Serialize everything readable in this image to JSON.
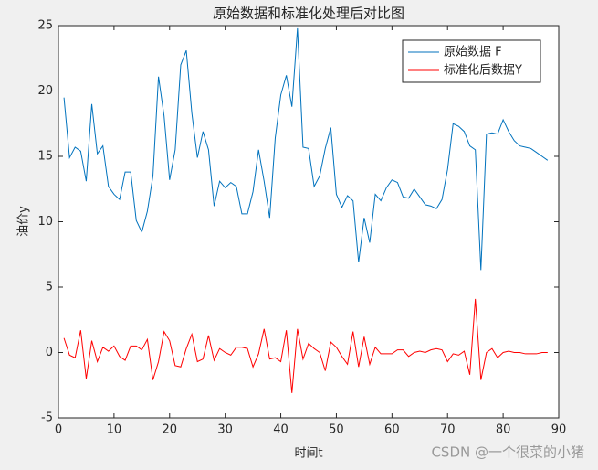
{
  "chart_data": {
    "type": "line",
    "title": "原始数据和标准化处理后对比图",
    "xlabel": "时间t",
    "ylabel": "油价y",
    "watermark": "CSDN @一个很菜的小猪",
    "x": [
      1,
      2,
      3,
      4,
      5,
      6,
      7,
      8,
      9,
      10,
      11,
      12,
      13,
      14,
      15,
      16,
      17,
      18,
      19,
      20,
      21,
      22,
      23,
      24,
      25,
      26,
      27,
      28,
      29,
      30,
      31,
      32,
      33,
      34,
      35,
      36,
      37,
      38,
      39,
      40,
      41,
      42,
      43,
      44,
      45,
      46,
      47,
      48,
      49,
      50,
      51,
      52,
      53,
      54,
      55,
      56,
      57,
      58,
      59,
      60,
      61,
      62,
      63,
      64,
      65,
      66,
      67,
      68,
      69,
      70,
      71,
      72,
      73,
      74,
      75,
      76,
      77,
      78,
      79,
      80,
      81,
      82,
      83,
      84,
      85,
      86,
      87,
      88
    ],
    "series": [
      {
        "name": "原始数据 F",
        "color": "#0072bd",
        "values": [
          19.5,
          14.9,
          15.7,
          15.4,
          13.1,
          19.0,
          15.2,
          15.8,
          12.7,
          12.1,
          11.7,
          13.8,
          13.8,
          10.1,
          9.2,
          10.8,
          13.5,
          21.1,
          18.1,
          13.2,
          15.5,
          22.0,
          23.1,
          18.3,
          14.9,
          16.9,
          15.5,
          11.2,
          13.1,
          12.6,
          13.0,
          12.7,
          10.6,
          10.6,
          12.3,
          15.5,
          13.1,
          10.3,
          16.4,
          19.7,
          21.2,
          18.8,
          24.8,
          15.7,
          15.6,
          12.7,
          13.5,
          15.6,
          17.2,
          12.1,
          11.1,
          12.0,
          11.6,
          6.9,
          10.3,
          8.4,
          12.1,
          11.6,
          12.6,
          13.2,
          13.0,
          11.9,
          11.8,
          12.5,
          11.9,
          11.3,
          11.2,
          11.0,
          11.7,
          14.0,
          17.5,
          17.3,
          16.9,
          15.8,
          15.5,
          6.3,
          16.7,
          16.8,
          16.7,
          17.8,
          16.9,
          16.2,
          15.8,
          15.7,
          15.6,
          15.3,
          15.0,
          14.7
        ]
      },
      {
        "name": "标准化后数据Y",
        "color": "#ff0000",
        "values": [
          1.1,
          -0.2,
          -0.4,
          1.7,
          -2.0,
          0.9,
          -0.7,
          0.4,
          0.1,
          0.5,
          -0.3,
          -0.6,
          0.5,
          0.5,
          0.2,
          1.0,
          -2.1,
          -0.7,
          1.6,
          0.9,
          -1.0,
          -1.1,
          0.3,
          1.4,
          -0.7,
          -0.5,
          1.3,
          -0.6,
          0.3,
          0.0,
          -0.2,
          0.4,
          0.4,
          0.3,
          -1.1,
          -0.1,
          1.8,
          -0.5,
          -0.4,
          -0.7,
          1.7,
          -3.1,
          1.8,
          -0.5,
          0.7,
          0.3,
          0.0,
          -1.4,
          0.8,
          0.4,
          -0.3,
          -0.9,
          1.6,
          -1.1,
          1.2,
          -0.9,
          0.4,
          -0.1,
          -0.1,
          -0.1,
          0.2,
          0.2,
          -0.3,
          0.0,
          0.1,
          0.0,
          0.2,
          0.3,
          0.2,
          -0.7,
          -0.1,
          -0.2,
          0.1,
          -1.7,
          4.1,
          -2.1,
          0.0,
          0.3,
          -0.4,
          0.0,
          0.1,
          0.0,
          0.0,
          -0.1,
          -0.1,
          -0.1,
          0.0,
          0.0
        ]
      }
    ],
    "xlim": [
      0,
      90
    ],
    "xticks": [
      0,
      10,
      20,
      30,
      40,
      50,
      60,
      70,
      80,
      90
    ],
    "ylim": [
      -5,
      25
    ],
    "yticks": [
      -5,
      0,
      5,
      10,
      15,
      20,
      25
    ],
    "legend": "northeast"
  }
}
